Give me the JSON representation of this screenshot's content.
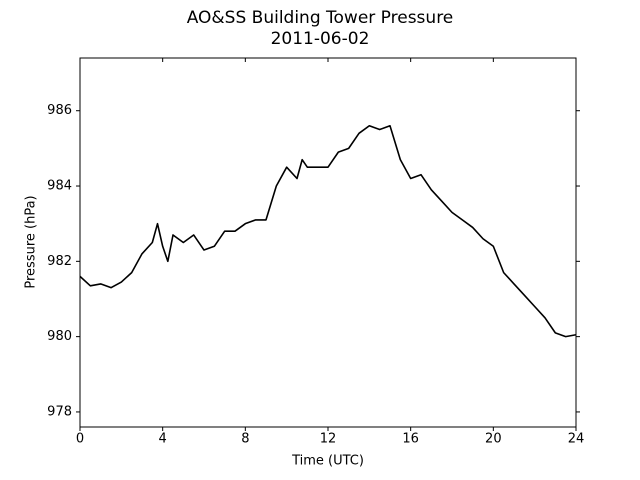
{
  "chart_data": {
    "type": "line",
    "title": "AO&SS Building Tower Pressure",
    "subtitle": "2011-06-02",
    "x_label": "Time (UTC)",
    "y_label": "Pressure (hPa)",
    "x": [
      0,
      0.5,
      1,
      1.5,
      2,
      2.5,
      3,
      3.5,
      3.75,
      4,
      4.25,
      4.5,
      5,
      5.5,
      6,
      6.5,
      7,
      7.5,
      8,
      8.5,
      9,
      9.5,
      10,
      10.5,
      10.75,
      11,
      11.5,
      12,
      12.5,
      13,
      13.5,
      14,
      14.5,
      15,
      15.5,
      16,
      16.5,
      17,
      17.5,
      18,
      18.5,
      19,
      19.5,
      20,
      20.5,
      21,
      21.5,
      22,
      22.5,
      23,
      23.5,
      24
    ],
    "series": [
      {
        "name": "Pressure",
        "color": "#000000",
        "values": [
          981.6,
          981.35,
          981.4,
          981.3,
          981.45,
          981.7,
          982.2,
          982.5,
          983.0,
          982.4,
          982.0,
          982.7,
          982.5,
          982.7,
          982.3,
          982.4,
          982.8,
          982.8,
          983.0,
          983.1,
          983.1,
          984.0,
          984.5,
          984.2,
          984.7,
          984.5,
          984.5,
          984.5,
          984.9,
          985.0,
          985.4,
          985.6,
          985.5,
          985.6,
          984.7,
          984.2,
          984.3,
          983.9,
          983.6,
          983.3,
          983.1,
          982.9,
          982.6,
          982.4,
          981.7,
          981.4,
          981.1,
          980.8,
          980.5,
          980.1,
          980.0,
          980.05
        ]
      }
    ],
    "xlim": [
      0,
      24
    ],
    "xticks": [
      0,
      4,
      8,
      12,
      16,
      20,
      24
    ],
    "ylim": [
      977.6,
      987.4
    ],
    "yticks": [
      978,
      980,
      982,
      984,
      986
    ],
    "grid": false
  }
}
